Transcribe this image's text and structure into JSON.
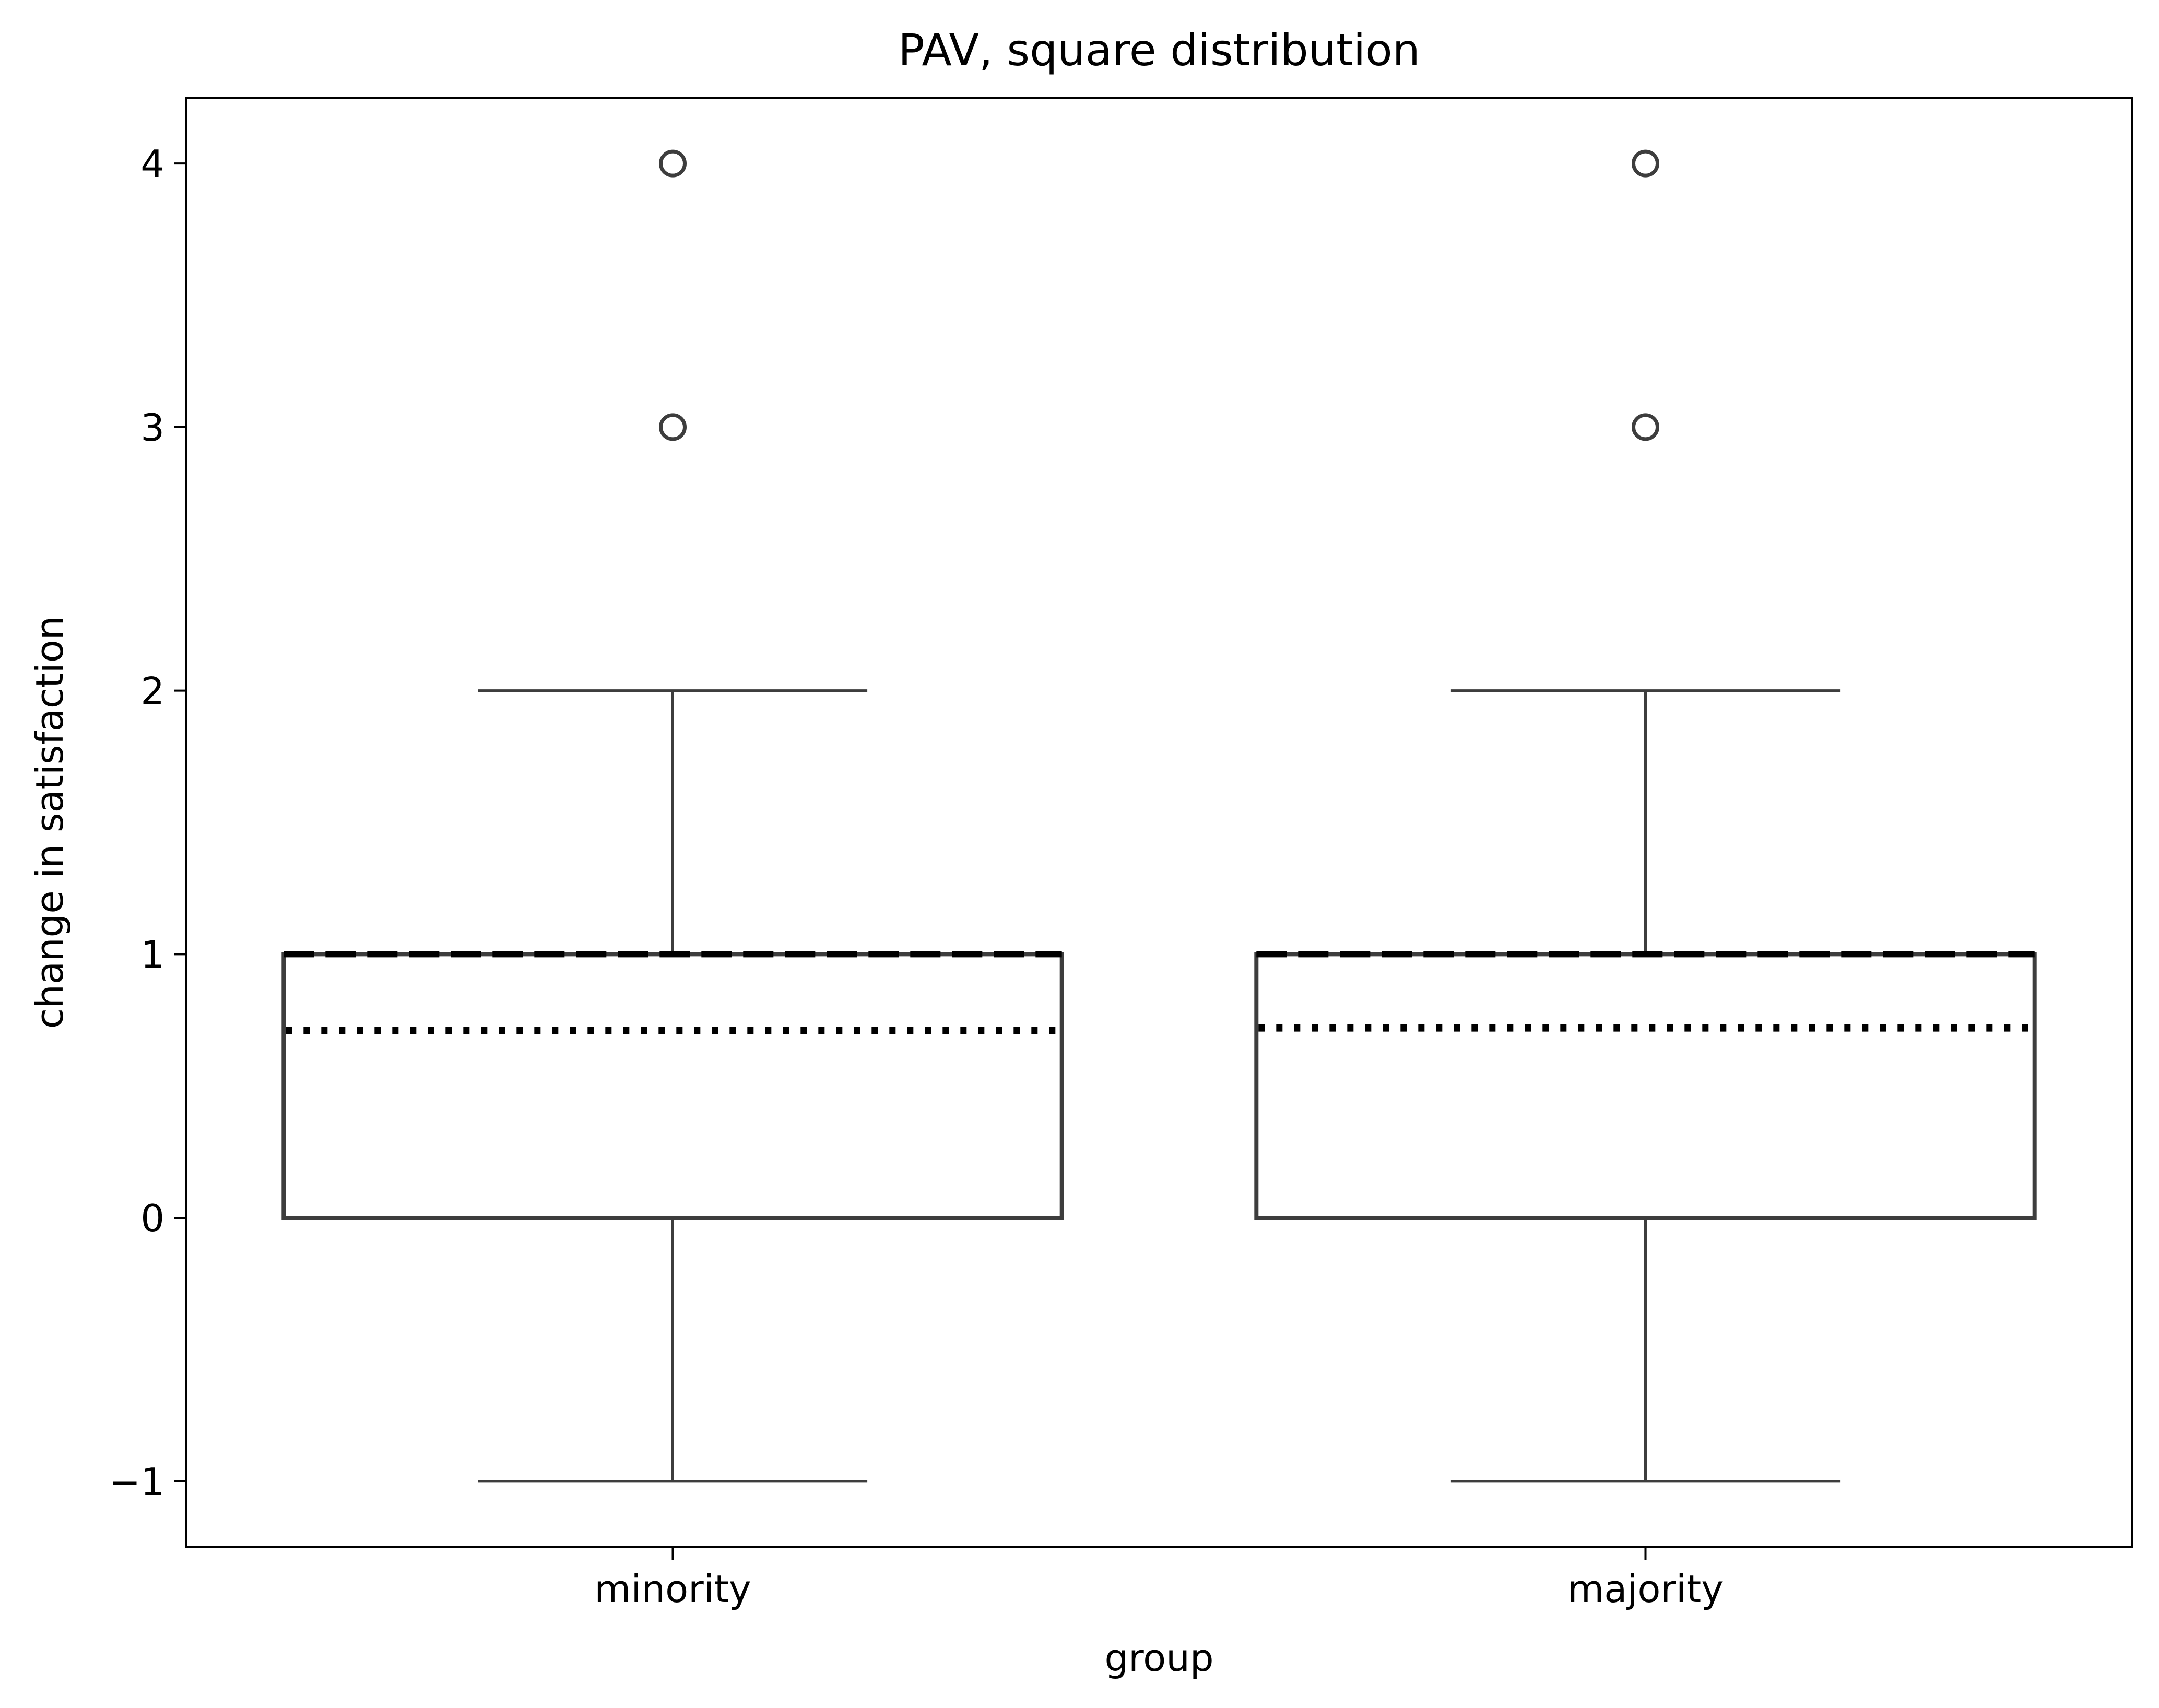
{
  "chart_data": {
    "type": "box",
    "title": "PAV, square distribution",
    "xlabel": "group",
    "ylabel": "change in satisfaction",
    "ylim": [
      -1.25,
      4.25
    ],
    "yticks": [
      -1,
      0,
      1,
      2,
      3,
      4
    ],
    "ytick_labels": [
      "−1",
      "0",
      "1",
      "2",
      "3",
      "4"
    ],
    "grid": false,
    "box_color": "#3d3d3d",
    "categories": [
      "minority",
      "majority"
    ],
    "boxes": [
      {
        "group": "minority",
        "whisker_low": -1,
        "q1": 0,
        "median": 1,
        "q3": 1,
        "whisker_high": 2,
        "mean": 0.71,
        "outliers": [
          3,
          4
        ]
      },
      {
        "group": "majority",
        "whisker_low": -1,
        "q1": 0,
        "median": 1,
        "q3": 1,
        "whisker_high": 2,
        "mean": 0.72,
        "outliers": [
          3,
          4
        ]
      }
    ]
  }
}
